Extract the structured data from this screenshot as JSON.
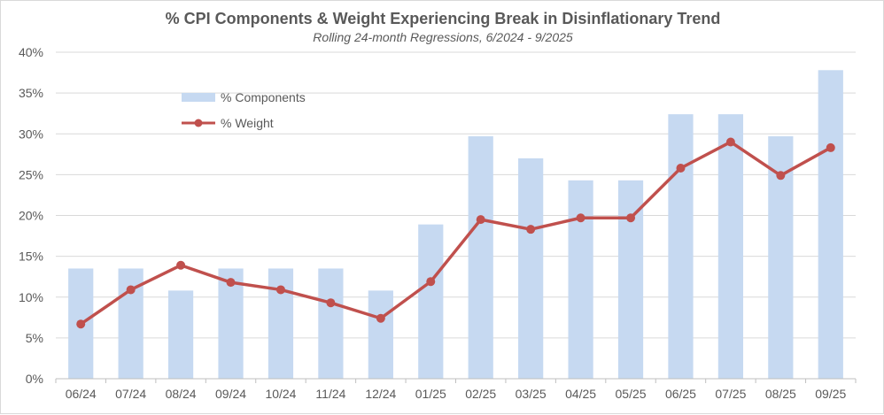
{
  "chart_data": {
    "type": "bar",
    "title": "% CPI Components & Weight Experiencing Break in Disinflationary Trend",
    "subtitle": "Rolling 24-month Regressions, 6/2024 - 9/2025",
    "xlabel": "",
    "ylabel": "",
    "categories": [
      "06/24",
      "07/24",
      "08/24",
      "09/24",
      "10/24",
      "11/24",
      "12/24",
      "01/25",
      "02/25",
      "03/25",
      "04/25",
      "05/25",
      "06/25",
      "07/25",
      "08/25",
      "09/25"
    ],
    "ylim": [
      0,
      40
    ],
    "yticks": [
      0,
      5,
      10,
      15,
      20,
      25,
      30,
      35,
      40
    ],
    "ytick_labels": [
      "0%",
      "5%",
      "10%",
      "15%",
      "20%",
      "25%",
      "30%",
      "35%",
      "40%"
    ],
    "grid": true,
    "legend_position": "top-left",
    "series": [
      {
        "name": "% Components",
        "kind": "bar",
        "color": "#c6d9f1",
        "values": [
          13.5,
          13.5,
          10.8,
          13.5,
          13.5,
          13.5,
          10.8,
          18.9,
          29.7,
          27.0,
          24.3,
          24.3,
          32.4,
          32.4,
          29.7,
          37.8
        ]
      },
      {
        "name": "% Weight",
        "kind": "line",
        "color": "#c0504d",
        "values": [
          6.7,
          10.9,
          13.9,
          11.8,
          10.9,
          9.3,
          7.4,
          11.9,
          19.5,
          18.3,
          19.7,
          19.7,
          25.8,
          29.0,
          24.9,
          28.3
        ]
      }
    ]
  }
}
